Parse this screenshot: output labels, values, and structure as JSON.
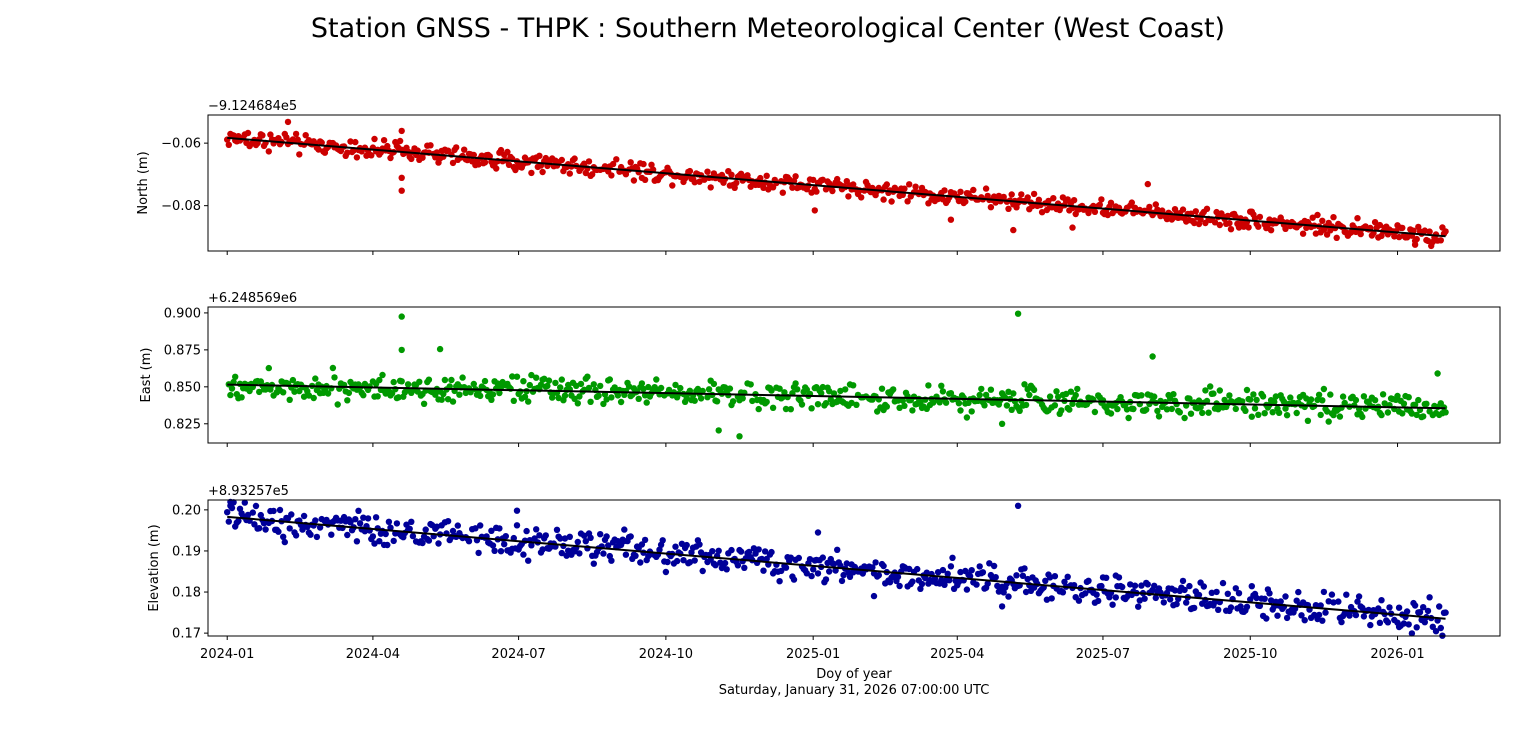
{
  "figure": {
    "title": "Station GNSS - THPK : Southern Meteorological Center (West Coast)",
    "xlabel": "Doy of year",
    "subtitle": "Saturday, January 31, 2026 07:00:00 UTC",
    "x_ticks": [
      {
        "date": "2024-01-01",
        "label": "2024-01"
      },
      {
        "date": "2024-04-01",
        "label": "2024-04"
      },
      {
        "date": "2024-07-01",
        "label": "2024-07"
      },
      {
        "date": "2024-10-01",
        "label": "2024-10"
      },
      {
        "date": "2025-01-01",
        "label": "2025-01"
      },
      {
        "date": "2025-04-01",
        "label": "2025-04"
      },
      {
        "date": "2025-07-01",
        "label": "2025-07"
      },
      {
        "date": "2025-10-01",
        "label": "2025-10"
      },
      {
        "date": "2026-01-01",
        "label": "2026-01"
      }
    ],
    "x_range": [
      "2023-12-20",
      "2026-03-06"
    ]
  },
  "chart_data": [
    {
      "type": "scatter",
      "name": "north",
      "ylabel": "North (m)",
      "offset_label": "−9.124684e5",
      "ylim": [
        -0.0945,
        -0.051
      ],
      "yticks": [
        -0.08,
        -0.06
      ],
      "ytick_labels": [
        "−0.08",
        "−0.06"
      ],
      "color": "#cc0000",
      "start_date": "2024-01-01",
      "end_date": "2026-01-31",
      "trend": {
        "start": -0.0583,
        "end": -0.0898
      },
      "noise": 0.0014,
      "outliers": [
        {
          "date": "2024-02-08",
          "y": -0.0532
        },
        {
          "date": "2024-04-19",
          "y": -0.0561
        },
        {
          "date": "2024-04-19",
          "y": -0.0711
        },
        {
          "date": "2024-04-19",
          "y": -0.0752
        },
        {
          "date": "2025-01-02",
          "y": -0.0815
        },
        {
          "date": "2025-03-28",
          "y": -0.0845
        },
        {
          "date": "2025-05-06",
          "y": -0.0878
        },
        {
          "date": "2025-06-12",
          "y": -0.087
        },
        {
          "date": "2025-07-29",
          "y": -0.0731
        },
        {
          "date": "2026-01-12",
          "y": -0.0925
        }
      ]
    },
    {
      "type": "scatter",
      "name": "east",
      "ylabel": "East (m)",
      "offset_label": "+6.248569e6",
      "ylim": [
        0.812,
        0.904
      ],
      "yticks": [
        0.825,
        0.85,
        0.875,
        0.9
      ],
      "ytick_labels": [
        "0.825",
        "0.850",
        "0.875",
        "0.900"
      ],
      "color": "#009900",
      "start_date": "2024-01-01",
      "end_date": "2026-01-31",
      "trend": {
        "start": 0.8515,
        "end": 0.8355
      },
      "noise": 0.0045,
      "outliers": [
        {
          "date": "2024-04-19",
          "y": 0.8975
        },
        {
          "date": "2024-04-19",
          "y": 0.875
        },
        {
          "date": "2024-05-13",
          "y": 0.8755
        },
        {
          "date": "2024-11-03",
          "y": 0.8205
        },
        {
          "date": "2024-11-16",
          "y": 0.8165
        },
        {
          "date": "2025-05-09",
          "y": 0.8995
        },
        {
          "date": "2025-04-29",
          "y": 0.825
        },
        {
          "date": "2025-08-01",
          "y": 0.8705
        },
        {
          "date": "2026-01-26",
          "y": 0.859
        }
      ]
    },
    {
      "type": "scatter",
      "name": "elevation",
      "ylabel": "Elevation (m)",
      "offset_label": "+8.93257e5",
      "ylim": [
        0.1693,
        0.2024
      ],
      "yticks": [
        0.17,
        0.18,
        0.19,
        0.2
      ],
      "ytick_labels": [
        "0.17",
        "0.18",
        "0.19",
        "0.20"
      ],
      "color": "#000099",
      "start_date": "2024-01-01",
      "end_date": "2026-01-31",
      "trend": {
        "start": 0.1983,
        "end": 0.1735
      },
      "noise": 0.0018,
      "outliers": [
        {
          "date": "2024-01-03",
          "y": 0.201
        },
        {
          "date": "2024-06-30",
          "y": 0.1998
        },
        {
          "date": "2024-09-05",
          "y": 0.1952
        },
        {
          "date": "2025-01-04",
          "y": 0.1945
        },
        {
          "date": "2025-02-08",
          "y": 0.179
        },
        {
          "date": "2025-05-09",
          "y": 0.201
        },
        {
          "date": "2025-04-29",
          "y": 0.1765
        },
        {
          "date": "2025-07-09",
          "y": 0.184
        },
        {
          "date": "2026-01-02",
          "y": 0.1715
        }
      ]
    }
  ]
}
